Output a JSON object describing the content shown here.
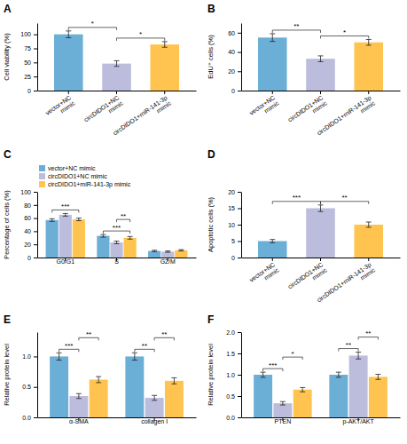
{
  "chart_data": [
    {
      "type": "bar",
      "title": "A",
      "ylabel": "Cell viability (%)",
      "categories": [
        "vector+NC\nmimic",
        "circDIDO1+NC\nmimic",
        "circDIDO1+miR-141-3p\nmimic"
      ],
      "values": [
        100,
        48,
        82
      ],
      "errors": [
        6,
        5,
        5
      ],
      "colors": [
        "#6baed6",
        "#bcbddc",
        "#fec44f"
      ],
      "ylim": [
        0,
        120
      ],
      "yticks": [
        0,
        25,
        50,
        75,
        100
      ],
      "annotations": [
        {
          "text": "*",
          "from": 0,
          "to": 1
        },
        {
          "text": "*",
          "from": 1,
          "to": 2
        }
      ]
    },
    {
      "type": "bar",
      "title": "B",
      "ylabel": "EdU⁺ cells (%)",
      "categories": [
        "vector+NC\nmimic",
        "circDIDO1+NC\nmimic",
        "circDIDO1+miR-141-3p\nmimic"
      ],
      "values": [
        55,
        33,
        50
      ],
      "errors": [
        4,
        3,
        3
      ],
      "colors": [
        "#6baed6",
        "#bcbddc",
        "#fec44f"
      ],
      "ylim": [
        0,
        70
      ],
      "yticks": [
        0,
        20,
        40,
        60
      ],
      "annotations": [
        {
          "text": "**",
          "from": 0,
          "to": 1
        },
        {
          "text": "*",
          "from": 1,
          "to": 2
        }
      ]
    },
    {
      "type": "bar",
      "title": "C",
      "ylabel": "Percentage of cells (%)",
      "categories": [
        "G0/G1",
        "S",
        "G2/M"
      ],
      "series": [
        {
          "name": "vector+NC mimic",
          "color": "#6baed6",
          "values": [
            57,
            33,
            10
          ],
          "errors": [
            2,
            2,
            1
          ]
        },
        {
          "name": "circDIDO1+NC mimic",
          "color": "#bcbddc",
          "values": [
            65,
            23,
            9
          ],
          "errors": [
            2,
            2,
            1
          ]
        },
        {
          "name": "circDIDO1+miR-141-3p mimic",
          "color": "#fec44f",
          "values": [
            58,
            30,
            11
          ],
          "errors": [
            2,
            2,
            1
          ]
        }
      ],
      "ylim": [
        0,
        100
      ],
      "yticks": [
        0,
        20,
        40,
        60,
        80,
        100
      ],
      "legend": "upper left",
      "annotations": [
        {
          "text": "***",
          "category": 0,
          "from": 0,
          "to": 2
        },
        {
          "text": "***",
          "category": 1,
          "from": 0,
          "to": 2
        },
        {
          "text": "**",
          "category": 1,
          "from": 1,
          "to": 2
        }
      ]
    },
    {
      "type": "bar",
      "title": "D",
      "ylabel": "Apoptotic cells (%)",
      "categories": [
        "vector+NC\nmimic",
        "circDIDO1+NC\nmimic",
        "circDIDO1+miR-141-3p\nmimic"
      ],
      "values": [
        5,
        15,
        10
      ],
      "errors": [
        0.5,
        1,
        0.8
      ],
      "colors": [
        "#6baed6",
        "#bcbddc",
        "#fec44f"
      ],
      "ylim": [
        0,
        20
      ],
      "yticks": [
        0,
        5,
        10,
        15,
        20
      ],
      "annotations": [
        {
          "text": "***",
          "from": 0,
          "to": 1
        },
        {
          "text": "**",
          "from": 1,
          "to": 2
        }
      ]
    },
    {
      "type": "bar",
      "title": "E",
      "ylabel": "Relative protein level",
      "categories": [
        "α-SMA",
        "collagen I"
      ],
      "series": [
        {
          "name": "vector+NC mimic",
          "color": "#6baed6",
          "values": [
            1.0,
            1.0
          ],
          "errors": [
            0.06,
            0.06
          ]
        },
        {
          "name": "circDIDO1+NC mimic",
          "color": "#bcbddc",
          "values": [
            0.35,
            0.32
          ],
          "errors": [
            0.04,
            0.04
          ]
        },
        {
          "name": "circDIDO1+miR-141-3p mimic",
          "color": "#fec44f",
          "values": [
            0.62,
            0.6
          ],
          "errors": [
            0.05,
            0.05
          ]
        }
      ],
      "ylim": [
        0,
        1.4
      ],
      "yticks": [
        {
          "value": 0,
          "label": "0.0"
        },
        0.5,
        {
          "value": 1.0,
          "label": "1.0"
        }
      ],
      "annotations": [
        {
          "text": "***",
          "category": 0,
          "from": 0,
          "to": 1
        },
        {
          "text": "**",
          "category": 0,
          "from": 1,
          "to": 2
        },
        {
          "text": "**",
          "category": 1,
          "from": 0,
          "to": 1
        },
        {
          "text": "**",
          "category": 1,
          "from": 1,
          "to": 2
        }
      ]
    },
    {
      "type": "bar",
      "title": "F",
      "ylabel": "Relative protein level",
      "categories": [
        "PTEN",
        "p-AKT/AKT"
      ],
      "series": [
        {
          "name": "vector+NC mimic",
          "color": "#6baed6",
          "values": [
            1.0,
            1.0
          ],
          "errors": [
            0.06,
            0.06
          ]
        },
        {
          "name": "circDIDO1+NC mimic",
          "color": "#bcbddc",
          "values": [
            0.33,
            1.45
          ],
          "errors": [
            0.04,
            0.08
          ]
        },
        {
          "name": "circDIDO1+miR-141-3p mimic",
          "color": "#fec44f",
          "values": [
            0.65,
            0.95
          ],
          "errors": [
            0.05,
            0.06
          ]
        }
      ],
      "ylim": [
        0,
        2.0
      ],
      "yticks": [
        {
          "value": 0,
          "label": "0.0"
        },
        0.5,
        {
          "value": 1.0,
          "label": "1.0"
        },
        1.5,
        {
          "value": 2.0,
          "label": "2.0"
        }
      ],
      "annotations": [
        {
          "text": "***",
          "category": 0,
          "from": 0,
          "to": 1
        },
        {
          "text": "*",
          "category": 0,
          "from": 1,
          "to": 2
        },
        {
          "text": "**",
          "category": 1,
          "from": 0,
          "to": 1
        },
        {
          "text": "**",
          "category": 1,
          "from": 1,
          "to": 2
        }
      ]
    }
  ]
}
